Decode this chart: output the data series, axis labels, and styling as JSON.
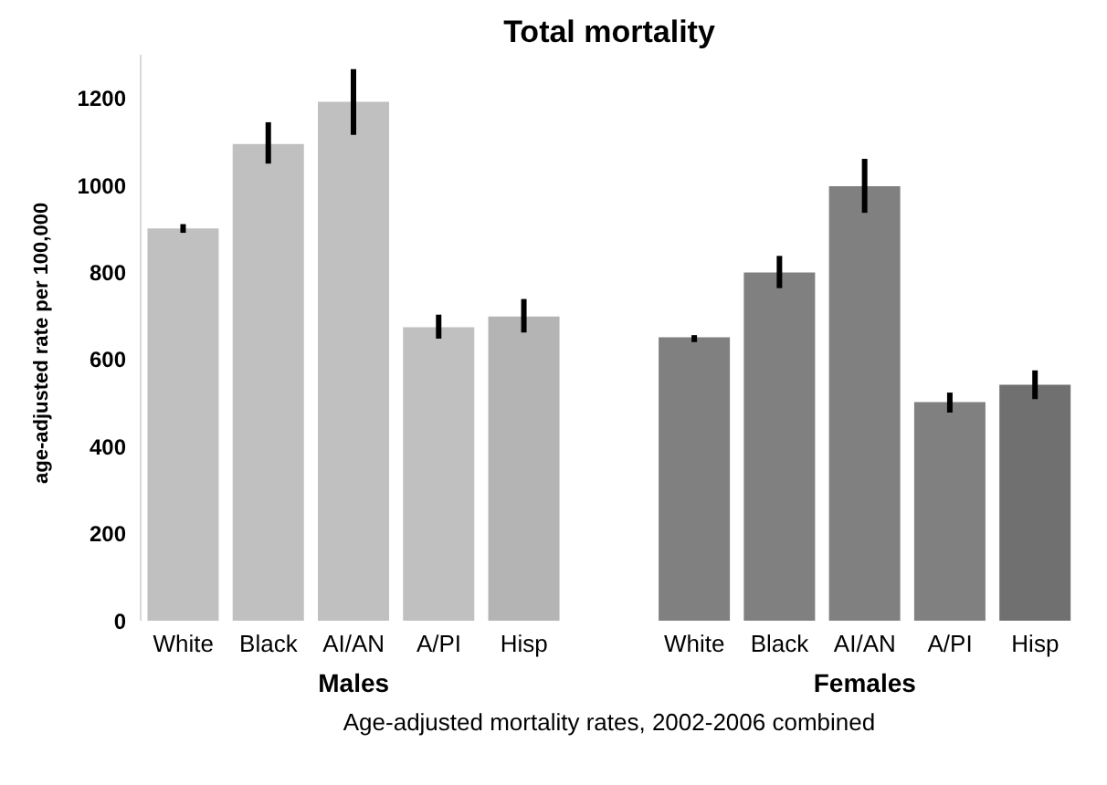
{
  "chart_data": {
    "type": "bar",
    "title": "Total mortality",
    "ylabel": "age-adjusted rate per 100,000",
    "xlabel": "Age-adjusted mortality rates, 2002-2006 combined",
    "annotations": [
      "Males",
      "Females"
    ],
    "categories": [
      "White",
      "Black",
      "AI/AN",
      "A/PI",
      "Hisp",
      null,
      "White",
      "Black",
      "AI/AN",
      "A/PI",
      "Hisp"
    ],
    "values": [
      901,
      1095,
      1192,
      674,
      699,
      null,
      651,
      800,
      998,
      502,
      542
    ],
    "errors": [
      [
        891,
        911
      ],
      [
        1050,
        1145
      ],
      [
        1116,
        1267
      ],
      [
        648,
        703
      ],
      [
        662,
        739
      ],
      null,
      [
        640,
        656
      ],
      [
        764,
        838
      ],
      [
        937,
        1061
      ],
      [
        478,
        524
      ],
      [
        509,
        575
      ]
    ],
    "colors": [
      "#c0c0c0",
      "#c0c0c0",
      "#c0c0c0",
      "#c0c0c0",
      "#b4b4b4",
      null,
      "#808080",
      "#808080",
      "#808080",
      "#808080",
      "#707070"
    ],
    "ylim": [
      0,
      1300
    ],
    "yticks": [
      0,
      200,
      400,
      600,
      800,
      1000,
      1200
    ],
    "grid": false,
    "legend": false
  }
}
